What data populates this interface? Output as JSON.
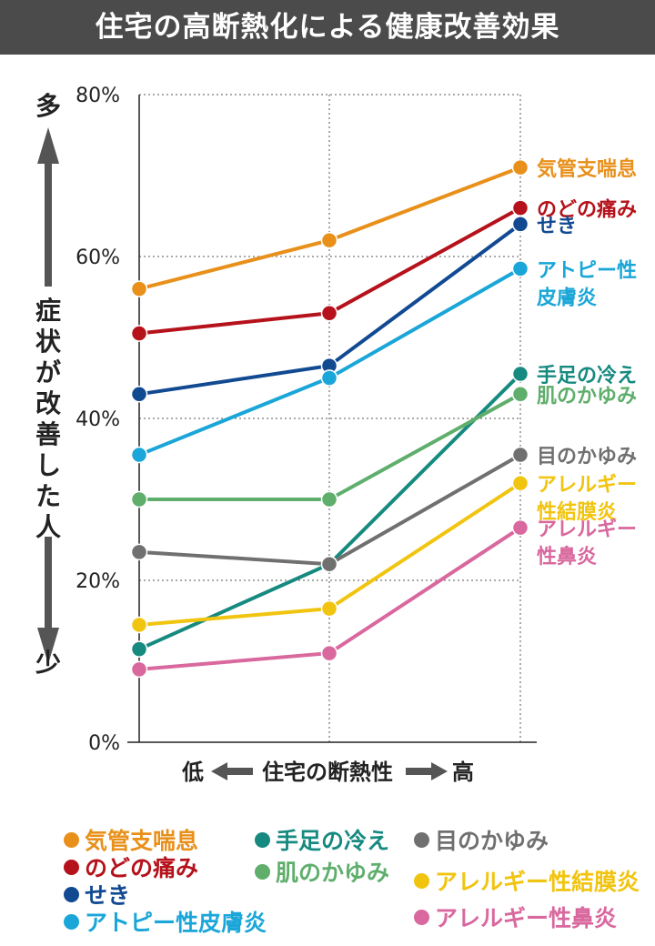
{
  "title": "住宅の高断熱化による健康改善効果",
  "y_axis": {
    "top_label": "多",
    "label": "症状が改善した人",
    "bottom_label": "少"
  },
  "x_axis": {
    "low": "低",
    "label": "住宅の断熱性",
    "high": "高"
  },
  "chart_data": {
    "type": "line",
    "title": "住宅の高断熱化による健康改善効果",
    "ylabel": "症状が改善した人",
    "xlabel": "住宅の断熱性",
    "ylim": [
      0,
      80
    ],
    "yticks": [
      "0%",
      "20%",
      "40%",
      "60%",
      "80%"
    ],
    "x": [
      1,
      2,
      3
    ],
    "grid": true,
    "legend": "bottom",
    "series": [
      {
        "name": "気管支喘息",
        "end_label": [
          "気管支喘息"
        ],
        "color": "#e8901a",
        "values": [
          56,
          62,
          71
        ]
      },
      {
        "name": "のどの痛み",
        "end_label": [
          "のどの痛み"
        ],
        "color": "#b5121b",
        "values": [
          50.5,
          53,
          66
        ]
      },
      {
        "name": "せき",
        "end_label": [
          "せき"
        ],
        "color": "#124a92",
        "values": [
          43,
          46.5,
          64
        ]
      },
      {
        "name": "アトピー性皮膚炎",
        "end_label": [
          "アトピー性",
          "皮膚炎"
        ],
        "color": "#1aa6d8",
        "values": [
          35.5,
          45,
          58.5
        ]
      },
      {
        "name": "手足の冷え",
        "end_label": [
          "手足の冷え"
        ],
        "color": "#178a80",
        "values": [
          11.5,
          22,
          45.5
        ]
      },
      {
        "name": "肌のかゆみ",
        "end_label": [
          "肌のかゆみ"
        ],
        "color": "#5fae6c",
        "values": [
          30,
          30,
          43
        ]
      },
      {
        "name": "目のかゆみ",
        "end_label": [
          "目のかゆみ"
        ],
        "color": "#707070",
        "values": [
          23.5,
          22,
          35.5
        ]
      },
      {
        "name": "アレルギー性結膜炎",
        "end_label": [
          "アレルギー",
          "性結膜炎"
        ],
        "color": "#f1c40f",
        "values": [
          14.5,
          16.5,
          32
        ]
      },
      {
        "name": "アレルギー性鼻炎",
        "end_label": [
          "アレルギー",
          "性鼻炎"
        ],
        "color": "#d9689e",
        "values": [
          9,
          11,
          26.5
        ]
      }
    ]
  }
}
